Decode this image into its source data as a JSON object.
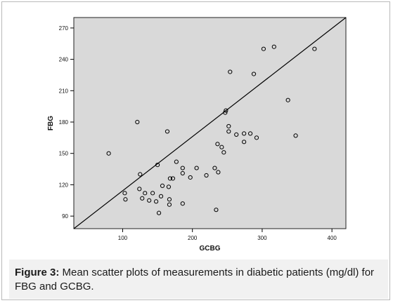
{
  "caption": {
    "label": "Figure 3:",
    "text": "Mean scatter plots of measurements in diabetic patients (mg/dl) for FBG and GCBG."
  },
  "chart_data": {
    "type": "scatter",
    "title": "",
    "xlabel": "GCBG",
    "ylabel": "FBG",
    "xlim": [
      30,
      420
    ],
    "ylim": [
      78,
      280
    ],
    "xticks": [
      100,
      200,
      300,
      400
    ],
    "yticks": [
      90,
      120,
      150,
      180,
      210,
      240,
      270
    ],
    "grid": false,
    "plot_background": "#d9d9d9",
    "marker": "open-circle",
    "reference_line": {
      "from": [
        30,
        78
      ],
      "to": [
        420,
        280
      ]
    },
    "points": [
      {
        "x": 80,
        "y": 150
      },
      {
        "x": 103,
        "y": 112
      },
      {
        "x": 104,
        "y": 106
      },
      {
        "x": 121,
        "y": 180
      },
      {
        "x": 125,
        "y": 130
      },
      {
        "x": 124,
        "y": 116
      },
      {
        "x": 128,
        "y": 107
      },
      {
        "x": 132,
        "y": 112
      },
      {
        "x": 138,
        "y": 105
      },
      {
        "x": 143,
        "y": 112
      },
      {
        "x": 148,
        "y": 104
      },
      {
        "x": 150,
        "y": 139
      },
      {
        "x": 152,
        "y": 93
      },
      {
        "x": 155,
        "y": 109
      },
      {
        "x": 157,
        "y": 119
      },
      {
        "x": 164,
        "y": 171
      },
      {
        "x": 166,
        "y": 118
      },
      {
        "x": 167,
        "y": 106
      },
      {
        "x": 167,
        "y": 101
      },
      {
        "x": 168,
        "y": 126
      },
      {
        "x": 172,
        "y": 126
      },
      {
        "x": 177,
        "y": 142
      },
      {
        "x": 186,
        "y": 136
      },
      {
        "x": 186,
        "y": 131
      },
      {
        "x": 186,
        "y": 102
      },
      {
        "x": 197,
        "y": 127
      },
      {
        "x": 206,
        "y": 136
      },
      {
        "x": 220,
        "y": 129
      },
      {
        "x": 232,
        "y": 136
      },
      {
        "x": 234,
        "y": 96
      },
      {
        "x": 236,
        "y": 159
      },
      {
        "x": 237,
        "y": 132
      },
      {
        "x": 242,
        "y": 156
      },
      {
        "x": 245,
        "y": 151
      },
      {
        "x": 247,
        "y": 189
      },
      {
        "x": 248,
        "y": 191
      },
      {
        "x": 252,
        "y": 176
      },
      {
        "x": 252,
        "y": 171
      },
      {
        "x": 254,
        "y": 228
      },
      {
        "x": 263,
        "y": 168
      },
      {
        "x": 274,
        "y": 169
      },
      {
        "x": 274,
        "y": 161
      },
      {
        "x": 283,
        "y": 169
      },
      {
        "x": 288,
        "y": 226
      },
      {
        "x": 292,
        "y": 165
      },
      {
        "x": 302,
        "y": 250
      },
      {
        "x": 317,
        "y": 252
      },
      {
        "x": 337,
        "y": 201
      },
      {
        "x": 348,
        "y": 167
      },
      {
        "x": 375,
        "y": 250
      }
    ]
  }
}
